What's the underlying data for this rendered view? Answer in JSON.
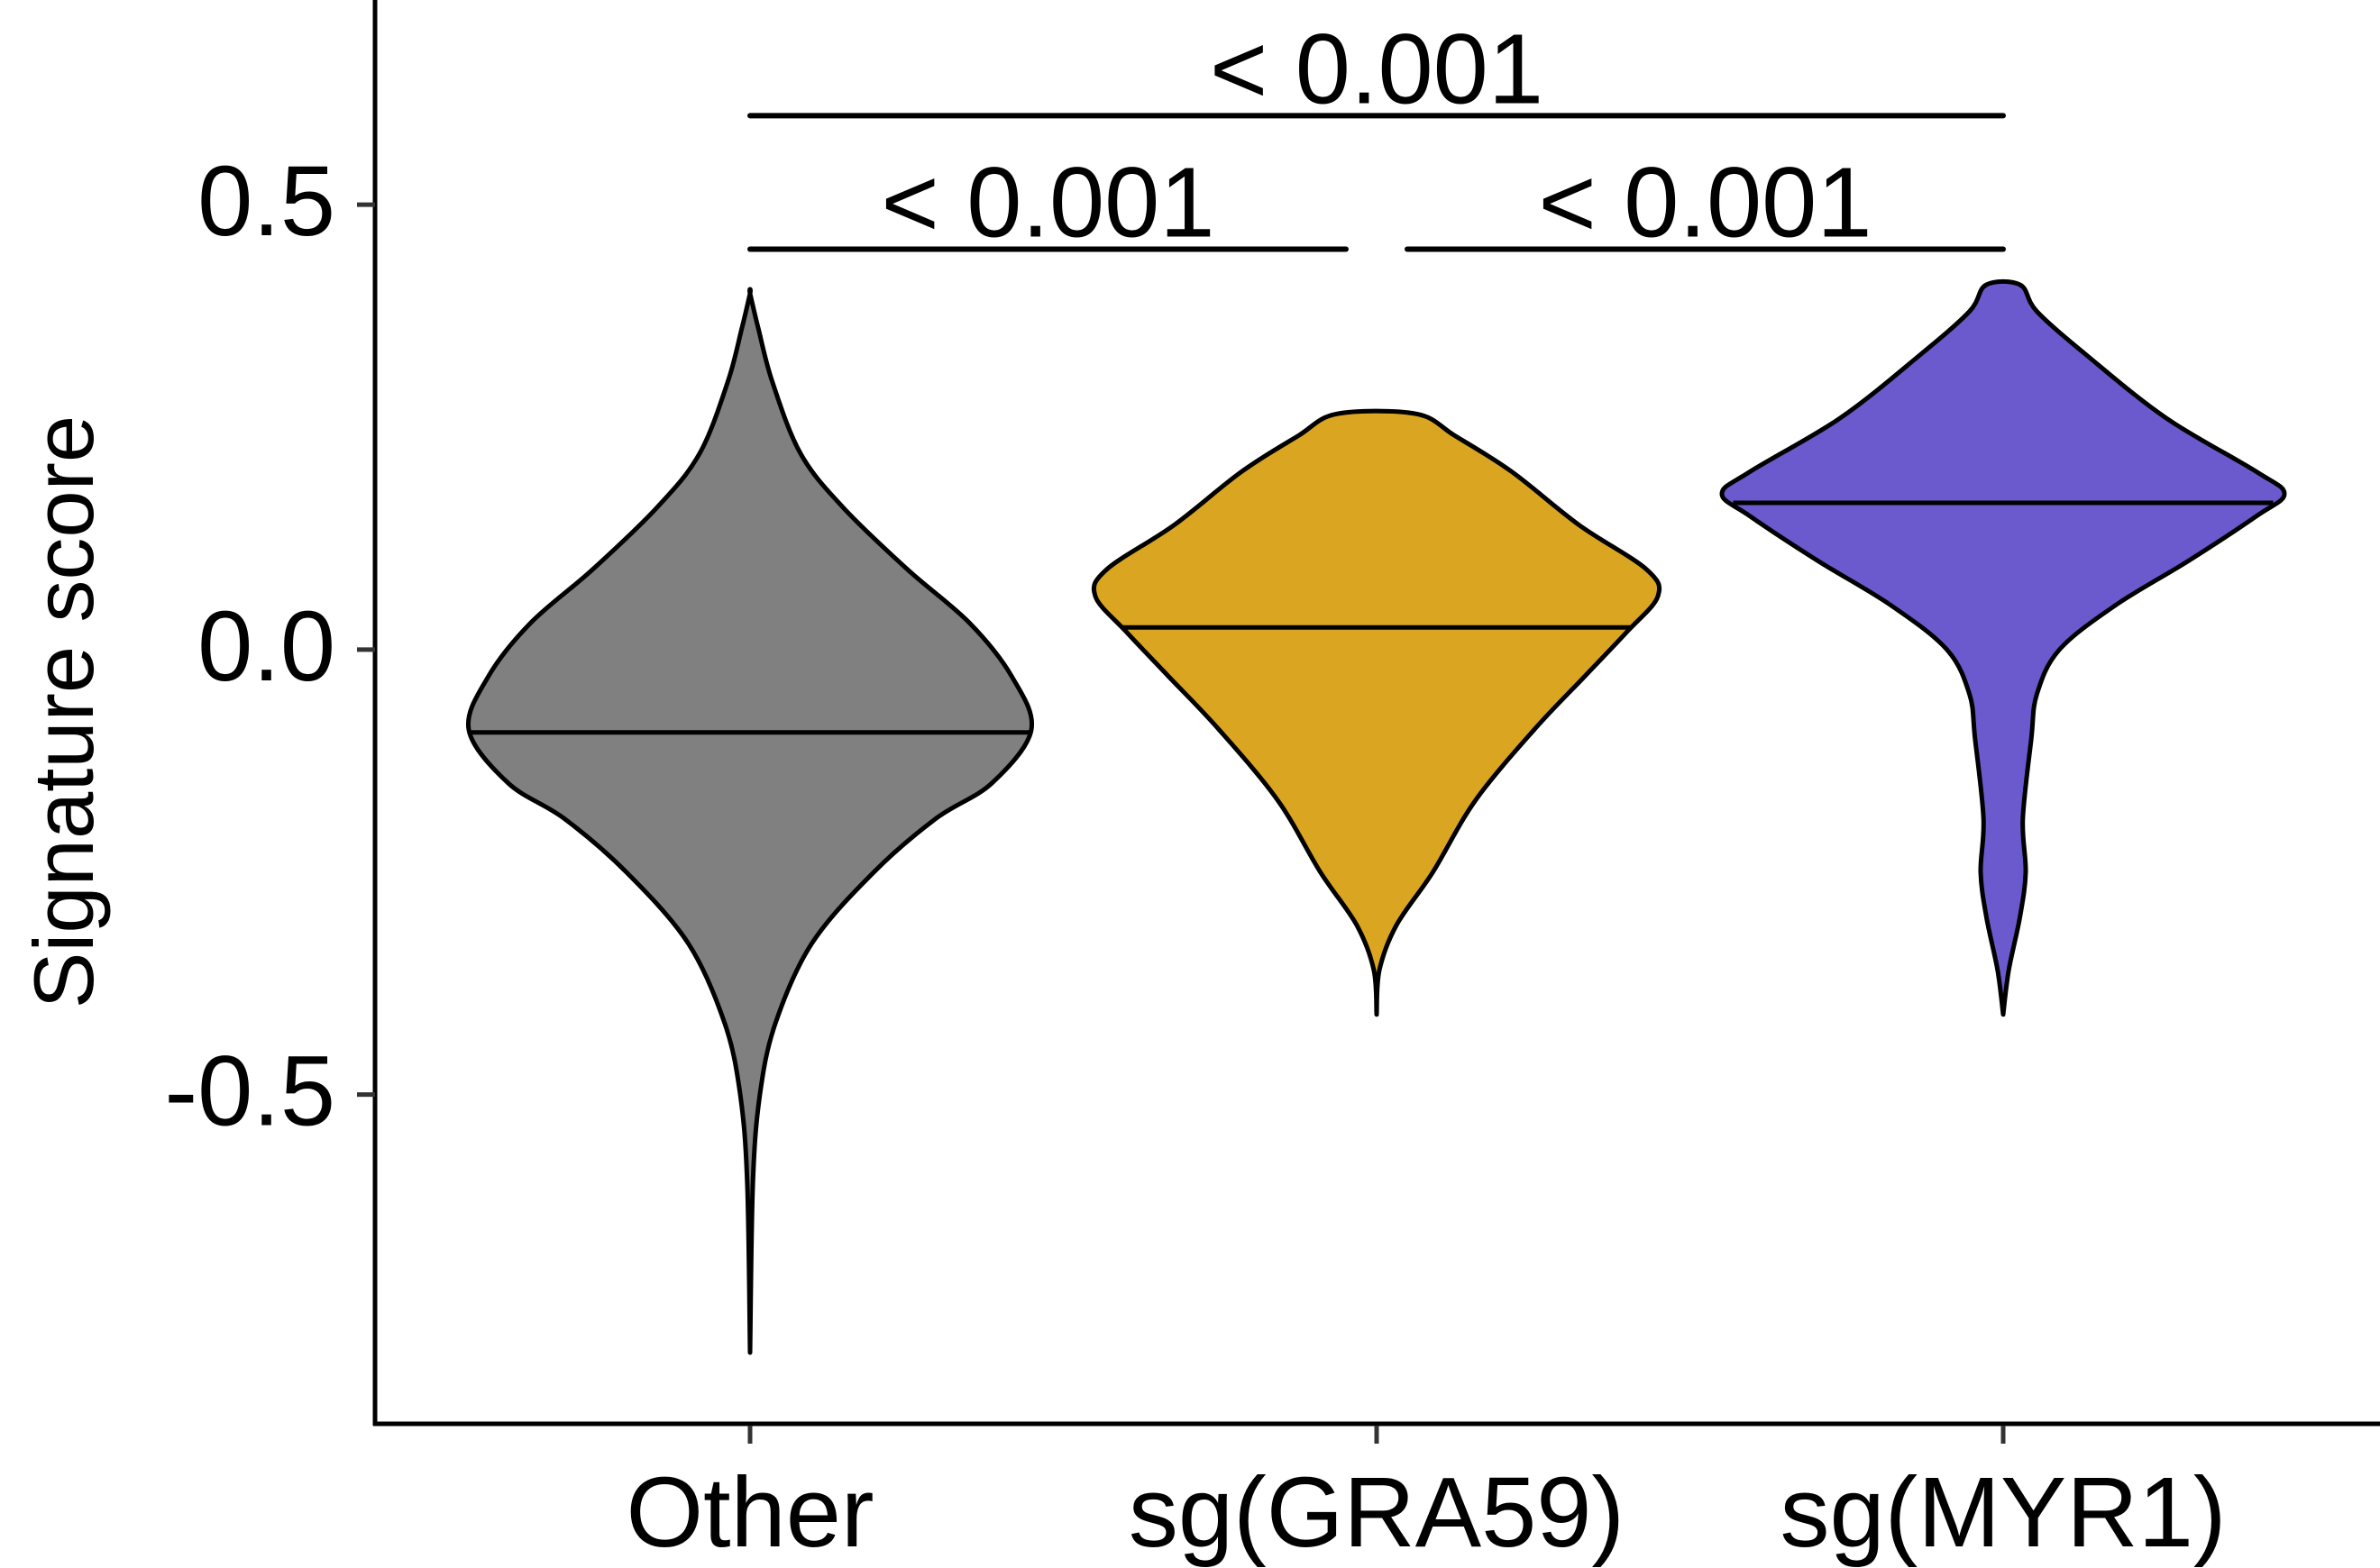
{
  "chart_data": {
    "type": "violin",
    "title": "",
    "xlabel": "",
    "ylabel": "Signature score",
    "ylim": [
      -0.87,
      0.73
    ],
    "yticks": [
      {
        "value": 0.5,
        "label": "0.5"
      },
      {
        "value": 0.0,
        "label": "0.0"
      },
      {
        "value": -0.5,
        "label": "-0.5"
      }
    ],
    "grid": false,
    "legend": "none",
    "categories": [
      "Other",
      "sg(GRA59)",
      "sg(MYR1)"
    ],
    "groups": [
      {
        "name": "Other",
        "color": "#808080",
        "median": -0.093,
        "min": -0.79,
        "max": 0.4,
        "profile": [
          [
            -0.79,
            0.0
          ],
          [
            -0.6,
            0.01
          ],
          [
            -0.5,
            0.035
          ],
          [
            -0.42,
            0.09
          ],
          [
            -0.33,
            0.22
          ],
          [
            -0.25,
            0.44
          ],
          [
            -0.19,
            0.66
          ],
          [
            -0.15,
            0.86
          ],
          [
            -0.09,
            1.0
          ],
          [
            -0.03,
            0.93
          ],
          [
            0.03,
            0.78
          ],
          [
            0.09,
            0.56
          ],
          [
            0.16,
            0.33
          ],
          [
            0.22,
            0.18
          ],
          [
            0.3,
            0.08
          ],
          [
            0.36,
            0.03
          ],
          [
            0.4,
            0.0
          ]
        ]
      },
      {
        "name": "sg(GRA59)",
        "color": "#DAA520",
        "median": 0.025,
        "min": -0.41,
        "max": 0.265,
        "profile": [
          [
            -0.41,
            0.0
          ],
          [
            -0.36,
            0.01
          ],
          [
            -0.31,
            0.07
          ],
          [
            -0.25,
            0.2
          ],
          [
            -0.17,
            0.35
          ],
          [
            -0.09,
            0.56
          ],
          [
            -0.03,
            0.74
          ],
          [
            0.02,
            0.89
          ],
          [
            0.06,
            1.0
          ],
          [
            0.09,
            0.96
          ],
          [
            0.14,
            0.72
          ],
          [
            0.2,
            0.48
          ],
          [
            0.24,
            0.28
          ],
          [
            0.265,
            0.14
          ]
        ]
      },
      {
        "name": "sg(MYR1)",
        "color": "#6A5ACD",
        "median": 0.165,
        "min": -0.41,
        "max": 0.41,
        "profile": [
          [
            -0.41,
            0.0
          ],
          [
            -0.36,
            0.02
          ],
          [
            -0.3,
            0.06
          ],
          [
            -0.25,
            0.08
          ],
          [
            -0.19,
            0.07
          ],
          [
            -0.1,
            0.1
          ],
          [
            -0.05,
            0.12
          ],
          [
            0.0,
            0.2
          ],
          [
            0.05,
            0.4
          ],
          [
            0.1,
            0.66
          ],
          [
            0.15,
            0.9
          ],
          [
            0.175,
            1.0
          ],
          [
            0.2,
            0.9
          ],
          [
            0.26,
            0.58
          ],
          [
            0.33,
            0.3
          ],
          [
            0.38,
            0.12
          ],
          [
            0.41,
            0.06
          ]
        ]
      }
    ],
    "comparisons": [
      {
        "group1": "Other",
        "group2": "sg(GRA59)",
        "label": "< 0.001",
        "y": 0.45
      },
      {
        "group1": "sg(GRA59)",
        "group2": "sg(MYR1)",
        "label": "< 0.001",
        "y": 0.45
      },
      {
        "group1": "Other",
        "group2": "sg(MYR1)",
        "label": "< 0.001",
        "y": 0.6
      }
    ]
  }
}
